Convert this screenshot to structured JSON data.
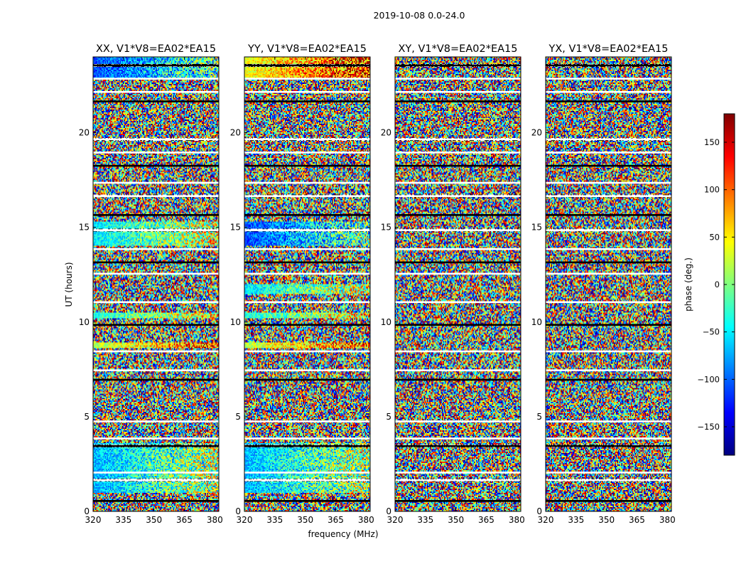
{
  "suptitle": "2019-10-08 0.0-24.0",
  "chart_data": {
    "type": "heatmap",
    "title": "2019-10-08 0.0-24.0",
    "xlabel": "frequency (MHz)",
    "ylabel": "UT (hours)",
    "xlim": [
      320,
      382
    ],
    "ylim": [
      0,
      24
    ],
    "x_ticks": [
      320,
      335,
      350,
      365,
      380
    ],
    "y_ticks": [
      0,
      5,
      10,
      15,
      20
    ],
    "colorbar": {
      "label": "phase (deg.)",
      "range": [
        -180,
        180
      ],
      "ticks": [
        150,
        100,
        50,
        0,
        -50,
        -100,
        -150
      ],
      "tick_labels": [
        "150",
        "100",
        "50",
        "0",
        "−50",
        "−100",
        "−150"
      ],
      "colormap": "jet",
      "colors": [
        "#00007f",
        "#0000ff",
        "#007fff",
        "#00ffff",
        "#7fff7f",
        "#ffff00",
        "#ff7f00",
        "#ff0000",
        "#7f0000"
      ]
    },
    "panels": [
      {
        "title": "XX, V1*V8=EA02*EA15",
        "pol": "XX",
        "coherent_bands_ut": [
          [
            1.0,
            3.6
          ],
          [
            8.6,
            8.9
          ],
          [
            10.2,
            10.5
          ],
          [
            14.0,
            15.3
          ],
          [
            22.8,
            24.0
          ]
        ]
      },
      {
        "title": "YY, V1*V8=EA02*EA15",
        "pol": "YY",
        "coherent_bands_ut": [
          [
            1.0,
            3.6
          ],
          [
            8.6,
            8.9
          ],
          [
            10.2,
            10.5
          ],
          [
            11.5,
            12.0
          ],
          [
            14.0,
            15.3
          ],
          [
            22.8,
            24.0
          ]
        ]
      },
      {
        "title": "XY, V1*V8=EA02*EA15",
        "pol": "XY",
        "coherent_bands_ut": []
      },
      {
        "title": "YX, V1*V8=EA02*EA15",
        "pol": "YX",
        "coherent_bands_ut": []
      }
    ],
    "flagged_bands_ut": [
      [
        0.5,
        0.6
      ],
      [
        1.6,
        1.7
      ],
      [
        2.0,
        2.1
      ],
      [
        3.4,
        3.5
      ],
      [
        3.8,
        3.9
      ],
      [
        4.7,
        4.8
      ],
      [
        6.9,
        7.0
      ],
      [
        7.4,
        7.5
      ],
      [
        8.4,
        8.5
      ],
      [
        9.8,
        9.9
      ],
      [
        11.0,
        11.1
      ],
      [
        12.5,
        12.6
      ],
      [
        13.1,
        13.2
      ],
      [
        13.8,
        13.9
      ],
      [
        14.8,
        14.9
      ],
      [
        15.6,
        15.7
      ],
      [
        16.6,
        16.7
      ],
      [
        17.3,
        17.4
      ],
      [
        18.2,
        18.3
      ],
      [
        18.9,
        19.0
      ],
      [
        19.6,
        19.7
      ],
      [
        21.6,
        21.7
      ],
      [
        22.1,
        22.2
      ],
      [
        22.8,
        22.9
      ],
      [
        23.5,
        23.6
      ]
    ]
  }
}
